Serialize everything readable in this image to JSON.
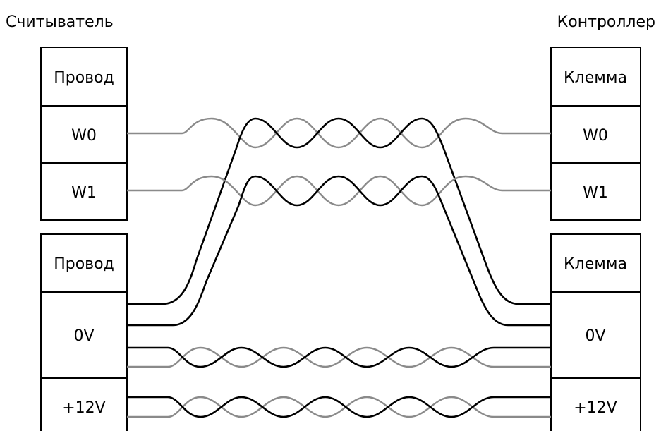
{
  "left_title": "Считыватель",
  "right_title": "Контроллер",
  "left_blocks": [
    {
      "header": "Провод",
      "rows": [
        "W0",
        "W1"
      ]
    },
    {
      "header": "Провод",
      "rows": [
        "0V",
        "+12V"
      ]
    }
  ],
  "right_blocks": [
    {
      "header": "Клемма",
      "rows": [
        "W0",
        "W1"
      ]
    },
    {
      "header": "Клемма",
      "rows": [
        "0V",
        "+12V"
      ]
    }
  ],
  "colors": {
    "wire_black": "#000000",
    "wire_gray": "#8a8a8a"
  }
}
